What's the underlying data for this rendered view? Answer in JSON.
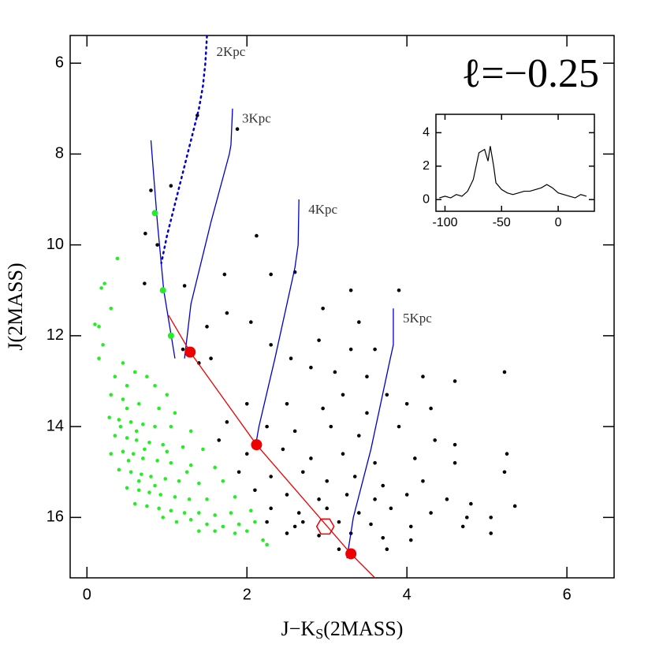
{
  "chart_data": [
    {
      "type": "scatter",
      "annotation": "ℓ=−0.25",
      "xlabel": "J−K",
      "xlabel_sub": "S",
      "xlabel_suffix": "(2MASS)",
      "ylabel": "J(2MASS)",
      "xlim": [
        -0.21,
        6.59
      ],
      "ylim": [
        17.33,
        5.39
      ],
      "xticks": [
        0,
        2,
        4,
        6
      ],
      "yticks": [
        6,
        8,
        10,
        12,
        14,
        16
      ],
      "series": [
        {
          "color": "#000000",
          "x": [
            1.38,
            1.88,
            0.8,
            1.05,
            0.73,
            0.88,
            2.12,
            0.72,
            1.22,
            1.72,
            2.3,
            2.6,
            3.3,
            3.9,
            2.95,
            3.4,
            1.75,
            2.05,
            1.5,
            2.3,
            2.9,
            3.3,
            3.6,
            1.2,
            1.4,
            1.55,
            2.55,
            2.8,
            3.1,
            3.5,
            4.2,
            5.22,
            4.6,
            3.2,
            3.75,
            4.0,
            2.0,
            2.5,
            2.95,
            3.5,
            4.3,
            1.75,
            2.25,
            2.6,
            3.05,
            3.4,
            3.9,
            4.35,
            4.6,
            1.65,
            2.0,
            2.45,
            2.8,
            3.2,
            3.6,
            4.1,
            4.6,
            5.25,
            1.9,
            2.3,
            2.7,
            3.0,
            3.35,
            3.7,
            4.2,
            5.22,
            2.1,
            2.5,
            2.9,
            3.25,
            3.6,
            4.0,
            4.5,
            4.8,
            5.35,
            2.3,
            2.65,
            3.0,
            3.4,
            3.8,
            4.3,
            4.75,
            5.05,
            2.25,
            2.6,
            3.15,
            3.55,
            4.05,
            4.7,
            5.05,
            2.5,
            2.9,
            3.3,
            3.7,
            4.05,
            2.7,
            3.15,
            3.75
          ],
          "y": [
            7.15,
            7.45,
            8.8,
            8.7,
            9.75,
            10.0,
            9.8,
            10.85,
            10.9,
            10.65,
            10.65,
            10.6,
            11.0,
            11.0,
            11.4,
            11.7,
            11.5,
            11.7,
            11.8,
            12.2,
            12.1,
            12.3,
            12.3,
            12.3,
            12.6,
            12.5,
            12.5,
            12.7,
            12.8,
            12.9,
            12.9,
            12.8,
            13.0,
            13.3,
            13.3,
            13.5,
            13.5,
            13.5,
            13.6,
            13.7,
            13.6,
            13.9,
            14.0,
            14.1,
            14.0,
            14.2,
            14.0,
            14.3,
            14.4,
            14.3,
            14.6,
            14.5,
            14.7,
            14.6,
            14.8,
            14.7,
            14.8,
            14.6,
            15.0,
            15.1,
            15.0,
            15.2,
            15.1,
            15.3,
            15.2,
            15.0,
            15.4,
            15.5,
            15.6,
            15.5,
            15.6,
            15.5,
            15.6,
            15.7,
            15.75,
            15.8,
            15.9,
            15.8,
            15.9,
            15.8,
            15.9,
            16.0,
            16.0,
            16.1,
            16.2,
            16.1,
            16.15,
            16.2,
            16.2,
            16.35,
            16.35,
            16.4,
            16.35,
            16.45,
            16.5,
            16.1,
            16.7,
            16.7
          ]
        },
        {
          "color": "#22ee22",
          "x": [
            0.38,
            0.22,
            0.18,
            0.3,
            0.1,
            0.15,
            0.2,
            0.15,
            0.45,
            0.6,
            0.35,
            0.75,
            0.5,
            0.85,
            1.0,
            0.3,
            0.45,
            0.65,
            0.9,
            1.1,
            0.28,
            0.4,
            0.55,
            0.7,
            0.85,
            1.05,
            1.3,
            0.35,
            0.5,
            0.62,
            0.78,
            0.95,
            1.2,
            1.45,
            0.3,
            0.45,
            0.58,
            0.7,
            0.88,
            1.05,
            1.3,
            1.6,
            0.4,
            0.55,
            0.68,
            0.8,
            0.98,
            1.15,
            1.4,
            1.7,
            0.5,
            0.65,
            0.78,
            0.92,
            1.1,
            1.28,
            1.5,
            1.85,
            0.6,
            0.75,
            0.9,
            1.05,
            1.22,
            1.4,
            1.6,
            1.8,
            2.05,
            0.95,
            1.12,
            1.3,
            1.5,
            1.7,
            1.9,
            2.1,
            1.4,
            1.6,
            1.85,
            2.0,
            2.2,
            2.25,
            0.5,
            0.62,
            0.72,
            0.42,
            0.52,
            0.65,
            1.0,
            1.25,
            0.85
          ],
          "y": [
            10.3,
            10.85,
            10.95,
            11.4,
            11.75,
            11.8,
            12.2,
            12.5,
            12.6,
            12.8,
            12.9,
            12.9,
            13.1,
            13.1,
            13.3,
            13.3,
            13.4,
            13.5,
            13.6,
            13.7,
            13.8,
            13.85,
            13.9,
            13.95,
            14.0,
            14.0,
            14.1,
            14.2,
            14.25,
            14.3,
            14.35,
            14.4,
            14.45,
            14.5,
            14.6,
            14.55,
            14.6,
            14.7,
            14.75,
            14.8,
            14.85,
            14.9,
            14.95,
            15.0,
            15.05,
            15.1,
            15.15,
            15.2,
            15.25,
            15.2,
            15.35,
            15.4,
            15.45,
            15.5,
            15.55,
            15.6,
            15.6,
            15.55,
            15.7,
            15.75,
            15.8,
            15.85,
            15.9,
            15.9,
            15.95,
            15.9,
            15.85,
            16.0,
            16.1,
            16.05,
            16.15,
            16.2,
            16.15,
            16.1,
            16.3,
            16.3,
            16.35,
            16.3,
            16.5,
            16.6,
            13.6,
            14.1,
            14.5,
            14.0,
            14.75,
            15.2,
            14.55,
            15.0,
            15.3
          ]
        }
      ],
      "tracks": [
        {
          "color": "#0000cc",
          "x": [
            0.8,
            0.88,
            0.96,
            1.1
          ],
          "y": [
            7.7,
            9.5,
            11.0,
            12.5
          ]
        },
        {
          "label": "2Kpc",
          "color": "#0000cc",
          "style": "dotted",
          "x": [
            1.5,
            1.48,
            1.45,
            1.4,
            1.3,
            1.2,
            1.1,
            1.0,
            0.93
          ],
          "y": [
            5.4,
            6.0,
            6.5,
            7.0,
            7.7,
            8.4,
            9.1,
            9.8,
            10.4
          ]
        },
        {
          "label": "3Kpc",
          "color": "#0000cc",
          "x": [
            1.82,
            1.8,
            1.78,
            1.55,
            1.3,
            1.22
          ],
          "y": [
            7.0,
            7.8,
            8.0,
            9.5,
            11.3,
            12.5
          ]
        },
        {
          "label": "4Kpc",
          "color": "#0000cc",
          "x": [
            2.65,
            2.64,
            2.6,
            2.35,
            2.15,
            2.1
          ],
          "y": [
            9.0,
            10.0,
            10.5,
            12.5,
            14.0,
            14.5
          ]
        },
        {
          "label": "5Kpc",
          "color": "#0000cc",
          "x": [
            3.83,
            3.83,
            3.78,
            3.55,
            3.33,
            3.25
          ],
          "y": [
            11.4,
            12.2,
            12.6,
            14.5,
            16.0,
            16.9
          ]
        },
        {
          "color": "#ee0000",
          "x": [
            1.02,
            1.29,
            2.12,
            3.3,
            3.6
          ],
          "y": [
            11.55,
            12.36,
            14.4,
            16.8,
            17.33
          ]
        }
      ],
      "markers": [
        {
          "shape": "circle",
          "color": "#ee0000",
          "size": 7,
          "x": [
            1.29,
            2.12,
            3.3
          ],
          "y": [
            12.36,
            14.4,
            16.8
          ]
        },
        {
          "shape": "circle",
          "color": "#22ee22",
          "size": 4,
          "x": [
            0.85,
            0.95,
            1.05
          ],
          "y": [
            9.3,
            11.0,
            12.0
          ]
        },
        {
          "shape": "hexagon",
          "color": "#ee0000",
          "size": 11,
          "x": [
            2.98
          ],
          "y": [
            16.2
          ]
        }
      ]
    },
    {
      "type": "line",
      "color": "#000000",
      "xlim": [
        -108,
        32
      ],
      "ylim": [
        -0.7,
        5.1
      ],
      "xticks": [
        -100,
        -50,
        0
      ],
      "yticks": [
        0,
        2,
        4
      ],
      "x": [
        -105,
        -100,
        -95,
        -90,
        -85,
        -80,
        -75,
        -70,
        -65,
        -62,
        -60,
        -57,
        -55,
        -50,
        -45,
        -40,
        -35,
        -30,
        -25,
        -20,
        -15,
        -10,
        -5,
        0,
        5,
        10,
        15,
        20,
        25
      ],
      "y": [
        0.1,
        0.2,
        0.1,
        0.3,
        0.2,
        0.5,
        1.2,
        2.8,
        3.0,
        2.3,
        3.2,
        2.0,
        1.0,
        0.6,
        0.4,
        0.3,
        0.4,
        0.5,
        0.5,
        0.6,
        0.7,
        0.9,
        0.7,
        0.4,
        0.3,
        0.2,
        0.1,
        0.3,
        0.2
      ]
    }
  ]
}
